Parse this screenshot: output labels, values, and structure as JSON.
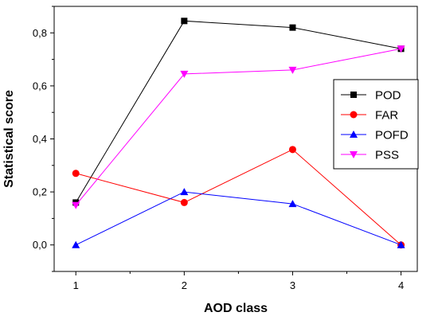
{
  "chart_data": {
    "type": "line",
    "title": "",
    "xlabel": "AOD class",
    "ylabel": "Statistical score",
    "x": [
      1,
      2,
      3,
      4
    ],
    "xticks": [
      "1",
      "2",
      "3",
      "4"
    ],
    "xlim": [
      0.8,
      4.15
    ],
    "yticks": [
      "0,0",
      "0,2",
      "0,4",
      "0,6",
      "0,8"
    ],
    "ylim": [
      -0.1,
      0.9
    ],
    "grid": false,
    "legend_position": "right",
    "series": [
      {
        "name": "POD",
        "values": [
          0.16,
          0.845,
          0.82,
          0.74
        ],
        "color": "#000000",
        "marker": "square"
      },
      {
        "name": "FAR",
        "values": [
          0.27,
          0.16,
          0.36,
          0.0
        ],
        "color": "#ff0000",
        "marker": "circle"
      },
      {
        "name": "POFD",
        "values": [
          0.0,
          0.2,
          0.155,
          0.0
        ],
        "color": "#0000ff",
        "marker": "triangle-up"
      },
      {
        "name": "PSS",
        "values": [
          0.15,
          0.645,
          0.66,
          0.74
        ],
        "color": "#ff00ff",
        "marker": "triangle-down"
      }
    ]
  }
}
